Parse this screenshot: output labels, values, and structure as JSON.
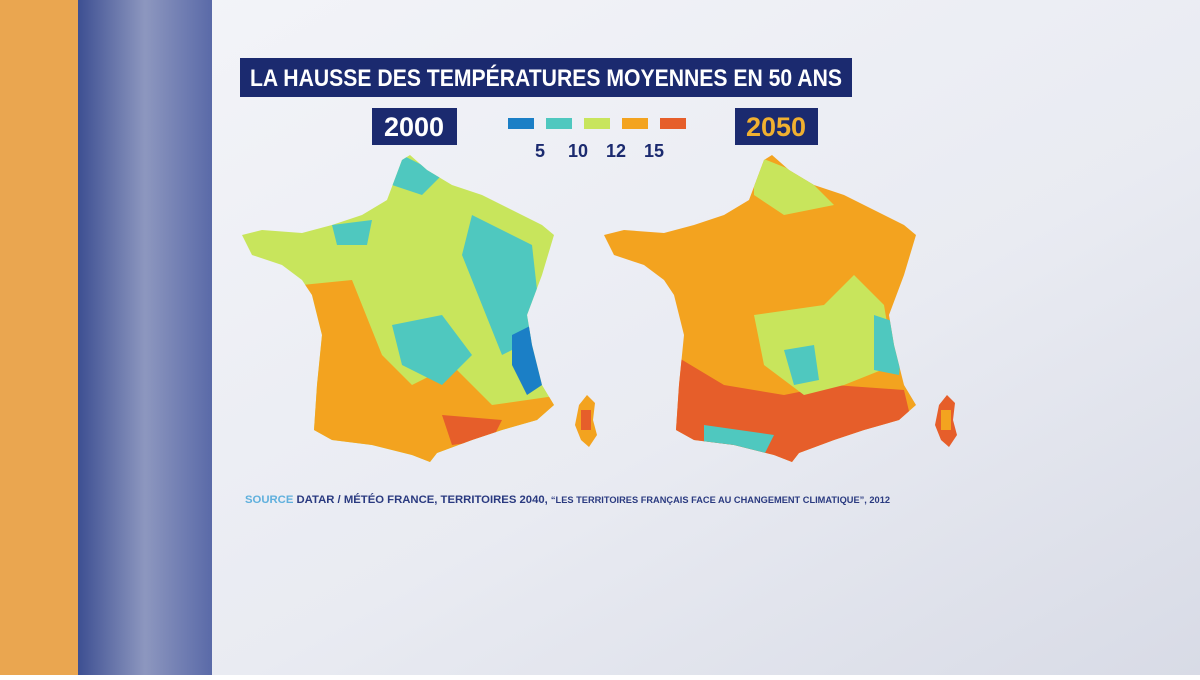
{
  "title": "LA HAUSSE DES TEMPÉRATURES MOYENNES EN 50 ANS",
  "maps": [
    {
      "year": "2000"
    },
    {
      "year": "2050"
    }
  ],
  "legend": {
    "colors": [
      "#1b7fc6",
      "#4fc8bf",
      "#c8e55c",
      "#f3a31f",
      "#e65e2a"
    ],
    "labels": [
      "5",
      "10",
      "12",
      "15"
    ]
  },
  "source": {
    "label": "SOURCE",
    "text": "DATAR / MÉTÉO FRANCE, TERRITOIRES 2040,",
    "quote": "“LES TERRITOIRES FRANÇAIS FACE AU CHANGEMENT CLIMATIQUE”",
    "year": ", 2012"
  }
}
